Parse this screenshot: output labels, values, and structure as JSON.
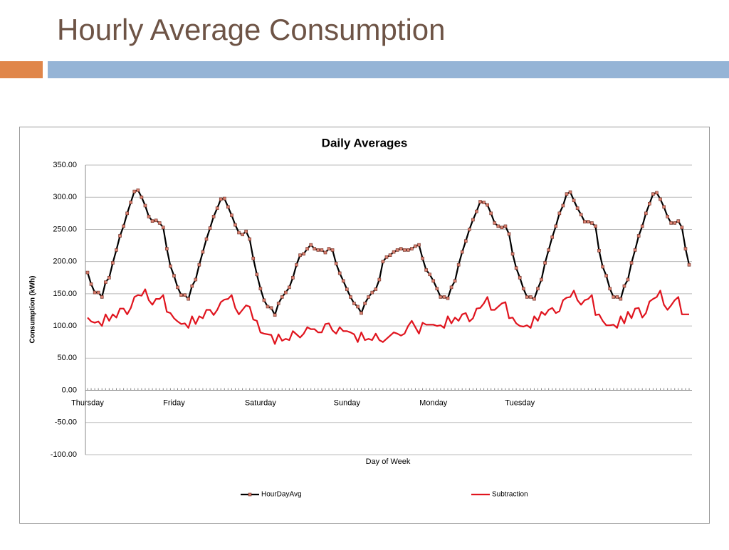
{
  "slide_title": "Hourly Average Consumption",
  "chart_data": {
    "type": "line",
    "title": "Daily Averages",
    "x_label": "Day of Week",
    "y_label": "Consumption (kWh)",
    "categories": [
      "Thursday",
      null,
      null,
      null,
      null,
      null,
      null,
      null,
      null,
      null,
      null,
      null,
      null,
      null,
      null,
      null,
      null,
      null,
      null,
      null,
      null,
      null,
      null,
      null,
      "Friday",
      null,
      null,
      null,
      null,
      null,
      null,
      null,
      null,
      null,
      null,
      null,
      null,
      null,
      null,
      null,
      null,
      null,
      null,
      null,
      null,
      null,
      null,
      null,
      "Saturday",
      null,
      null,
      null,
      null,
      null,
      null,
      null,
      null,
      null,
      null,
      null,
      null,
      null,
      null,
      null,
      null,
      null,
      null,
      null,
      null,
      null,
      null,
      null,
      "Sunday",
      null,
      null,
      null,
      null,
      null,
      null,
      null,
      null,
      null,
      null,
      null,
      null,
      null,
      null,
      null,
      null,
      null,
      null,
      null,
      null,
      null,
      null,
      null,
      "Monday",
      null,
      null,
      null,
      null,
      null,
      null,
      null,
      null,
      null,
      null,
      null,
      null,
      null,
      null,
      null,
      null,
      null,
      null,
      null,
      null,
      null,
      null,
      null,
      "Tuesday",
      null,
      null,
      null,
      null,
      null,
      null,
      null,
      null,
      null,
      null,
      null,
      null,
      null,
      null,
      null,
      null,
      null,
      null,
      null,
      null,
      null,
      null,
      null,
      null,
      null,
      null,
      null,
      null,
      null,
      null,
      null,
      null,
      null,
      null,
      null,
      null,
      null,
      null,
      null,
      null,
      null,
      null,
      null,
      null,
      null,
      null,
      null
    ],
    "series": [
      {
        "name": "HourDayAvg",
        "color": "#000000",
        "marker_color": "#d98070",
        "markers": true,
        "values": [
          183,
          165,
          152,
          152,
          145,
          168,
          175,
          198,
          218,
          240,
          255,
          275,
          292,
          309,
          311,
          300,
          287,
          270,
          263,
          264,
          260,
          253,
          220,
          193,
          178,
          160,
          148,
          148,
          142,
          162,
          172,
          195,
          215,
          235,
          252,
          270,
          283,
          297,
          298,
          285,
          272,
          257,
          245,
          242,
          247,
          235,
          205,
          180,
          158,
          140,
          130,
          128,
          117,
          135,
          145,
          152,
          160,
          175,
          195,
          210,
          212,
          220,
          226,
          220,
          218,
          218,
          214,
          220,
          218,
          197,
          182,
          170,
          157,
          145,
          135,
          130,
          120,
          135,
          145,
          152,
          157,
          172,
          200,
          207,
          210,
          215,
          218,
          220,
          218,
          218,
          220,
          224,
          226,
          205,
          187,
          180,
          170,
          158,
          145,
          145,
          143,
          160,
          170,
          195,
          215,
          232,
          250,
          265,
          278,
          293,
          292,
          288,
          275,
          260,
          255,
          253,
          255,
          243,
          212,
          190,
          175,
          158,
          145,
          145,
          142,
          158,
          172,
          198,
          218,
          238,
          255,
          275,
          287,
          305,
          308,
          295,
          283,
          273,
          262,
          262,
          260,
          255,
          217,
          192,
          178,
          158,
          145,
          145,
          142,
          162,
          172,
          198,
          218,
          240,
          255,
          275,
          290,
          305,
          307,
          297,
          285,
          270,
          260,
          260,
          263,
          253,
          220,
          195
        ]
      },
      {
        "name": "Subtraction",
        "color": "#e0141e",
        "markers": false,
        "values": [
          113,
          107,
          105,
          107,
          100,
          118,
          108,
          118,
          113,
          127,
          127,
          118,
          128,
          145,
          148,
          147,
          157,
          140,
          133,
          142,
          142,
          148,
          122,
          120,
          112,
          107,
          103,
          104,
          97,
          115,
          103,
          115,
          112,
          125,
          125,
          117,
          125,
          137,
          141,
          142,
          148,
          128,
          118,
          125,
          132,
          130,
          110,
          108,
          90,
          88,
          87,
          86,
          72,
          87,
          77,
          80,
          78,
          92,
          87,
          82,
          88,
          98,
          95,
          95,
          90,
          90,
          103,
          104,
          93,
          88,
          98,
          92,
          92,
          90,
          87,
          75,
          90,
          78,
          80,
          78,
          88,
          78,
          75,
          80,
          85,
          90,
          88,
          85,
          88,
          100,
          108,
          98,
          88,
          105,
          102,
          102,
          102,
          100,
          101,
          97,
          115,
          104,
          113,
          108,
          118,
          120,
          107,
          112,
          127,
          128,
          135,
          145,
          125,
          125,
          130,
          135,
          137,
          112,
          113,
          104,
          100,
          99,
          101,
          97,
          115,
          108,
          122,
          117,
          125,
          128,
          120,
          123,
          140,
          144,
          145,
          155,
          140,
          133,
          140,
          142,
          148,
          117,
          118,
          108,
          101,
          101,
          102,
          97,
          115,
          104,
          122,
          112,
          127,
          128,
          113,
          120,
          138,
          142,
          145,
          155,
          133,
          125,
          132,
          140,
          145,
          118,
          118,
          118
        ]
      }
    ],
    "ylim": [
      -100,
      350
    ],
    "yticks": [
      {
        "value": -100,
        "label": "-100.00"
      },
      {
        "value": -50,
        "label": "-50.00"
      },
      {
        "value": 0,
        "label": "0.00"
      },
      {
        "value": 50,
        "label": "50.00"
      },
      {
        "value": 100,
        "label": "100.00"
      },
      {
        "value": 150,
        "label": "150.00"
      },
      {
        "value": 200,
        "label": "200.00"
      },
      {
        "value": 250,
        "label": "250.00"
      },
      {
        "value": 300,
        "label": "300.00"
      },
      {
        "value": 350,
        "label": "350.00"
      }
    ],
    "grid": true,
    "legend": "bottom"
  }
}
